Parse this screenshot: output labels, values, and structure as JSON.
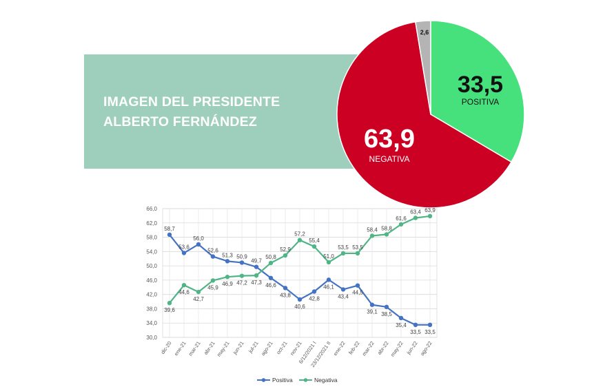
{
  "header": {
    "title_line1": "IMAGEN DEL PRESIDENTE",
    "title_line2": "ALBERTO FERNÁNDEZ"
  },
  "colors": {
    "banner": "#9ecfbd",
    "positiva": "#4472c4",
    "negativa": "#4fb587",
    "pie_positiva": "#46e07d",
    "pie_negativa": "#cc0022",
    "pie_other": "#b4b4b4"
  },
  "chart_data": [
    {
      "type": "pie",
      "slices": [
        {
          "label": "POSITIVA",
          "value": 33.5,
          "text": "33,5"
        },
        {
          "label": "NEGATIVA",
          "value": 63.9,
          "text": "63,9"
        },
        {
          "label": "",
          "value": 2.6,
          "text": "2,6"
        }
      ]
    },
    {
      "type": "line",
      "categories": [
        "dic-20",
        "ene-21",
        "mar-21",
        "abr-21",
        "may-21",
        "jun-21",
        "jul-21",
        "ago-21",
        "oct-21",
        "nov-21",
        "6/12/2021 I",
        "23/12/2021 II",
        "ene-22",
        "feb-22",
        "mar-22",
        "abr-22",
        "may-22",
        "jun-22",
        "ago-22"
      ],
      "series": [
        {
          "name": "Positiva",
          "values": [
            58.7,
            53.6,
            56.0,
            52.6,
            51.3,
            50.9,
            49.7,
            46.6,
            43.8,
            40.6,
            42.8,
            46.1,
            43.4,
            44.5,
            39.1,
            38.5,
            35.4,
            33.5,
            33.5
          ],
          "labels": [
            "58,7",
            "53,6",
            "56,0",
            "52,6",
            "51,3",
            "50,9",
            "49,7",
            "46,6",
            "43,8",
            "40,6",
            "42,8",
            "46,1",
            "43,4",
            "44,5",
            "39,1",
            "38,5",
            "35,4",
            "33,5",
            "33,5"
          ]
        },
        {
          "name": "Negativa",
          "values": [
            39.6,
            44.6,
            42.7,
            45.9,
            46.9,
            47.2,
            47.3,
            50.8,
            52.9,
            57.2,
            55.4,
            51.0,
            53.5,
            53.5,
            58.4,
            58.8,
            61.6,
            63.4,
            63.9
          ],
          "labels": [
            "39,6",
            "44,6",
            "42,7",
            "45,9",
            "46,9",
            "47,2",
            "47,3",
            "50,8",
            "52,9",
            "57,2",
            "55,4",
            "51,0",
            "53,5",
            "53,5",
            "58,4",
            "58,8",
            "61,6",
            "63,4",
            "63,9"
          ]
        }
      ],
      "yticks": [
        "30,0",
        "34,0",
        "38,0",
        "42,0",
        "46,0",
        "50,0",
        "54,0",
        "58,0",
        "62,0",
        "66,0"
      ],
      "ylim": [
        30,
        66
      ],
      "grid": true,
      "legend": "bottom"
    }
  ]
}
